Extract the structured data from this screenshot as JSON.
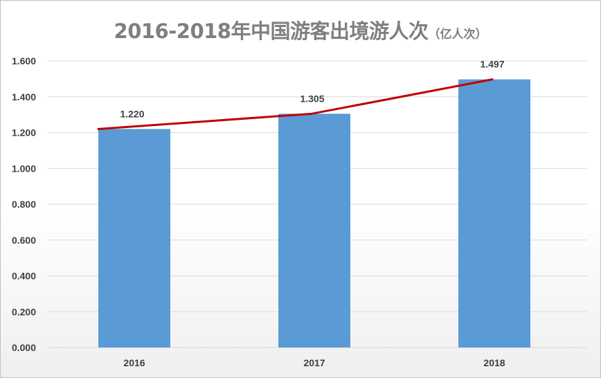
{
  "chart_data": {
    "type": "bar",
    "title": "2016-2018年中国游客出境游人次",
    "subtitle": "（亿人次）",
    "categories": [
      "2016",
      "2017",
      "2018"
    ],
    "series": [
      {
        "values": [
          1.22,
          1.305,
          1.497
        ],
        "data_labels": [
          "1.220",
          "1.305",
          "1.497"
        ]
      }
    ],
    "trend_line": {
      "values": [
        1.22,
        1.305,
        1.497
      ]
    },
    "ylim": [
      0,
      1.6
    ],
    "yticks": [
      "0.000",
      "0.200",
      "0.400",
      "0.600",
      "0.800",
      "1.000",
      "1.200",
      "1.400",
      "1.600"
    ],
    "grid": true,
    "legend": "none",
    "colors": {
      "bar": "#5b9bd5",
      "line": "#c00000",
      "grid": "#d9d9d9",
      "text": "#404040",
      "title": "#7f7f7f"
    }
  }
}
